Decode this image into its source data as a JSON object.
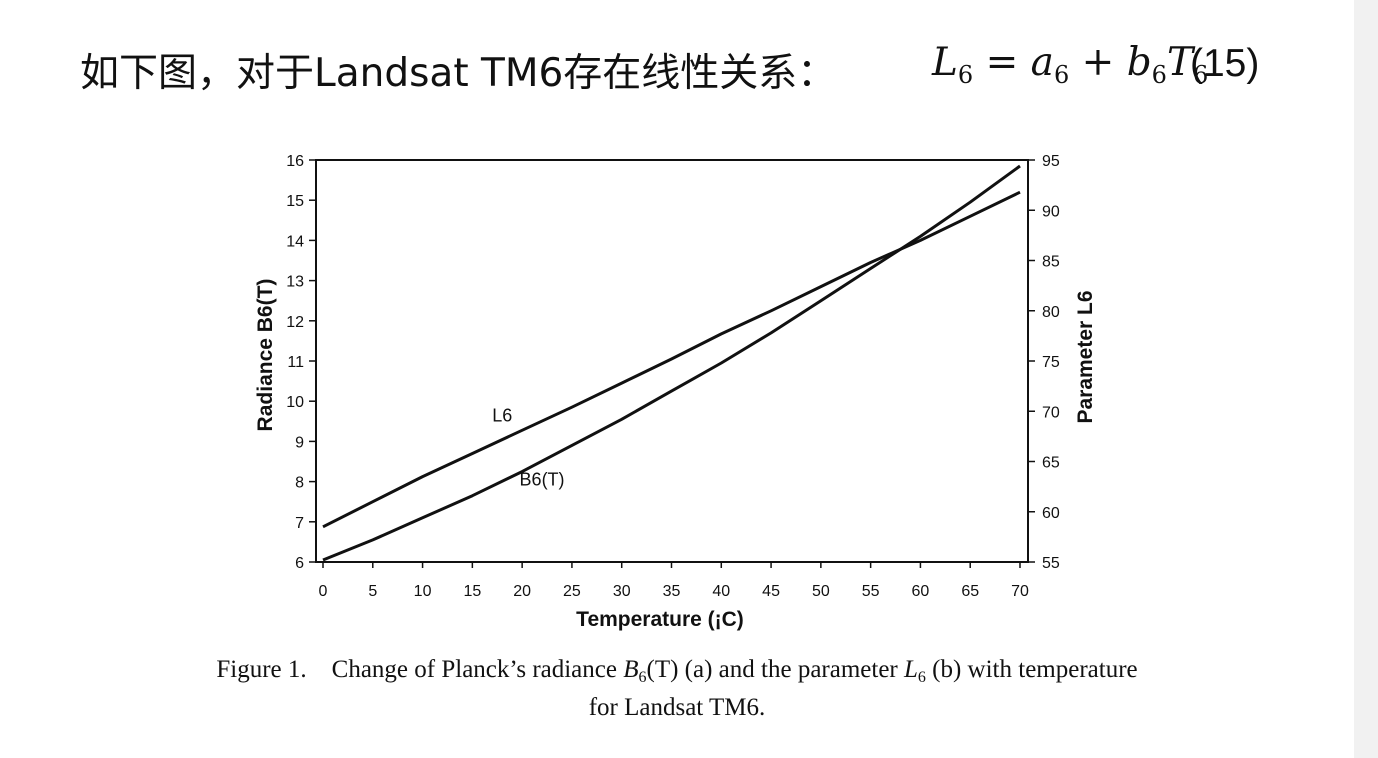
{
  "header": {
    "text": "如下图，对于Landsat TM6存在线性关系：",
    "formula": {
      "L": "L",
      "L_sub": "6",
      "eq": " = ",
      "a": "a",
      "a_sub": "6",
      "plus": " + ",
      "b": "b",
      "b_sub": "6",
      "T": "T",
      "T_sub": "6"
    },
    "equation_number": "(15)"
  },
  "chart_data": {
    "type": "line",
    "x_label": "Temperature (¡C)",
    "y_left_label": "Radiance B6(T)",
    "y_right_label": "Parameter L6",
    "x_ticks": [
      "0",
      "5",
      "10",
      "15",
      "20",
      "25",
      "30",
      "35",
      "40",
      "45",
      "50",
      "55",
      "60",
      "65",
      "70"
    ],
    "y_left_ticks": [
      "6",
      "7",
      "8",
      "9",
      "10",
      "11",
      "12",
      "13",
      "14",
      "15",
      "16"
    ],
    "y_right_ticks": [
      "55",
      "60",
      "65",
      "70",
      "75",
      "80",
      "85",
      "90",
      "95"
    ],
    "xlim": [
      0,
      70
    ],
    "y_left_lim": [
      6,
      16
    ],
    "y_right_lim": [
      55,
      95
    ],
    "series": [
      {
        "name": "B6(T)",
        "axis": "left",
        "x": [
          0,
          5,
          10,
          15,
          20,
          25,
          30,
          35,
          40,
          45,
          50,
          55,
          60,
          65,
          70
        ],
        "values": [
          6.05,
          6.55,
          7.1,
          7.65,
          8.25,
          8.9,
          9.55,
          10.25,
          10.95,
          11.7,
          12.5,
          13.3,
          14.1,
          14.95,
          15.85
        ]
      },
      {
        "name": "L6",
        "axis": "right",
        "x": [
          0,
          5,
          10,
          15,
          20,
          25,
          30,
          35,
          40,
          45,
          50,
          55,
          60,
          65,
          70
        ],
        "values": [
          58.5,
          61.0,
          63.5,
          65.8,
          68.1,
          70.4,
          72.8,
          75.2,
          77.7,
          80.0,
          82.4,
          84.8,
          87.0,
          89.4,
          91.8
        ]
      }
    ],
    "annotations": [
      {
        "text": "L6",
        "x": 18,
        "y_left": 9.5
      },
      {
        "text": "B6(T)",
        "x": 22,
        "y_left": 7.9
      }
    ]
  },
  "caption": {
    "prefix": "Figure 1.",
    "part1": "Change of Planck’s radiance ",
    "B": "B",
    "B_sub": "6",
    "part2": "(T) (a) and the parameter ",
    "L": "L",
    "L_sub": "6",
    "part3": " (b) with temperature",
    "line2": "for Landsat TM6."
  }
}
